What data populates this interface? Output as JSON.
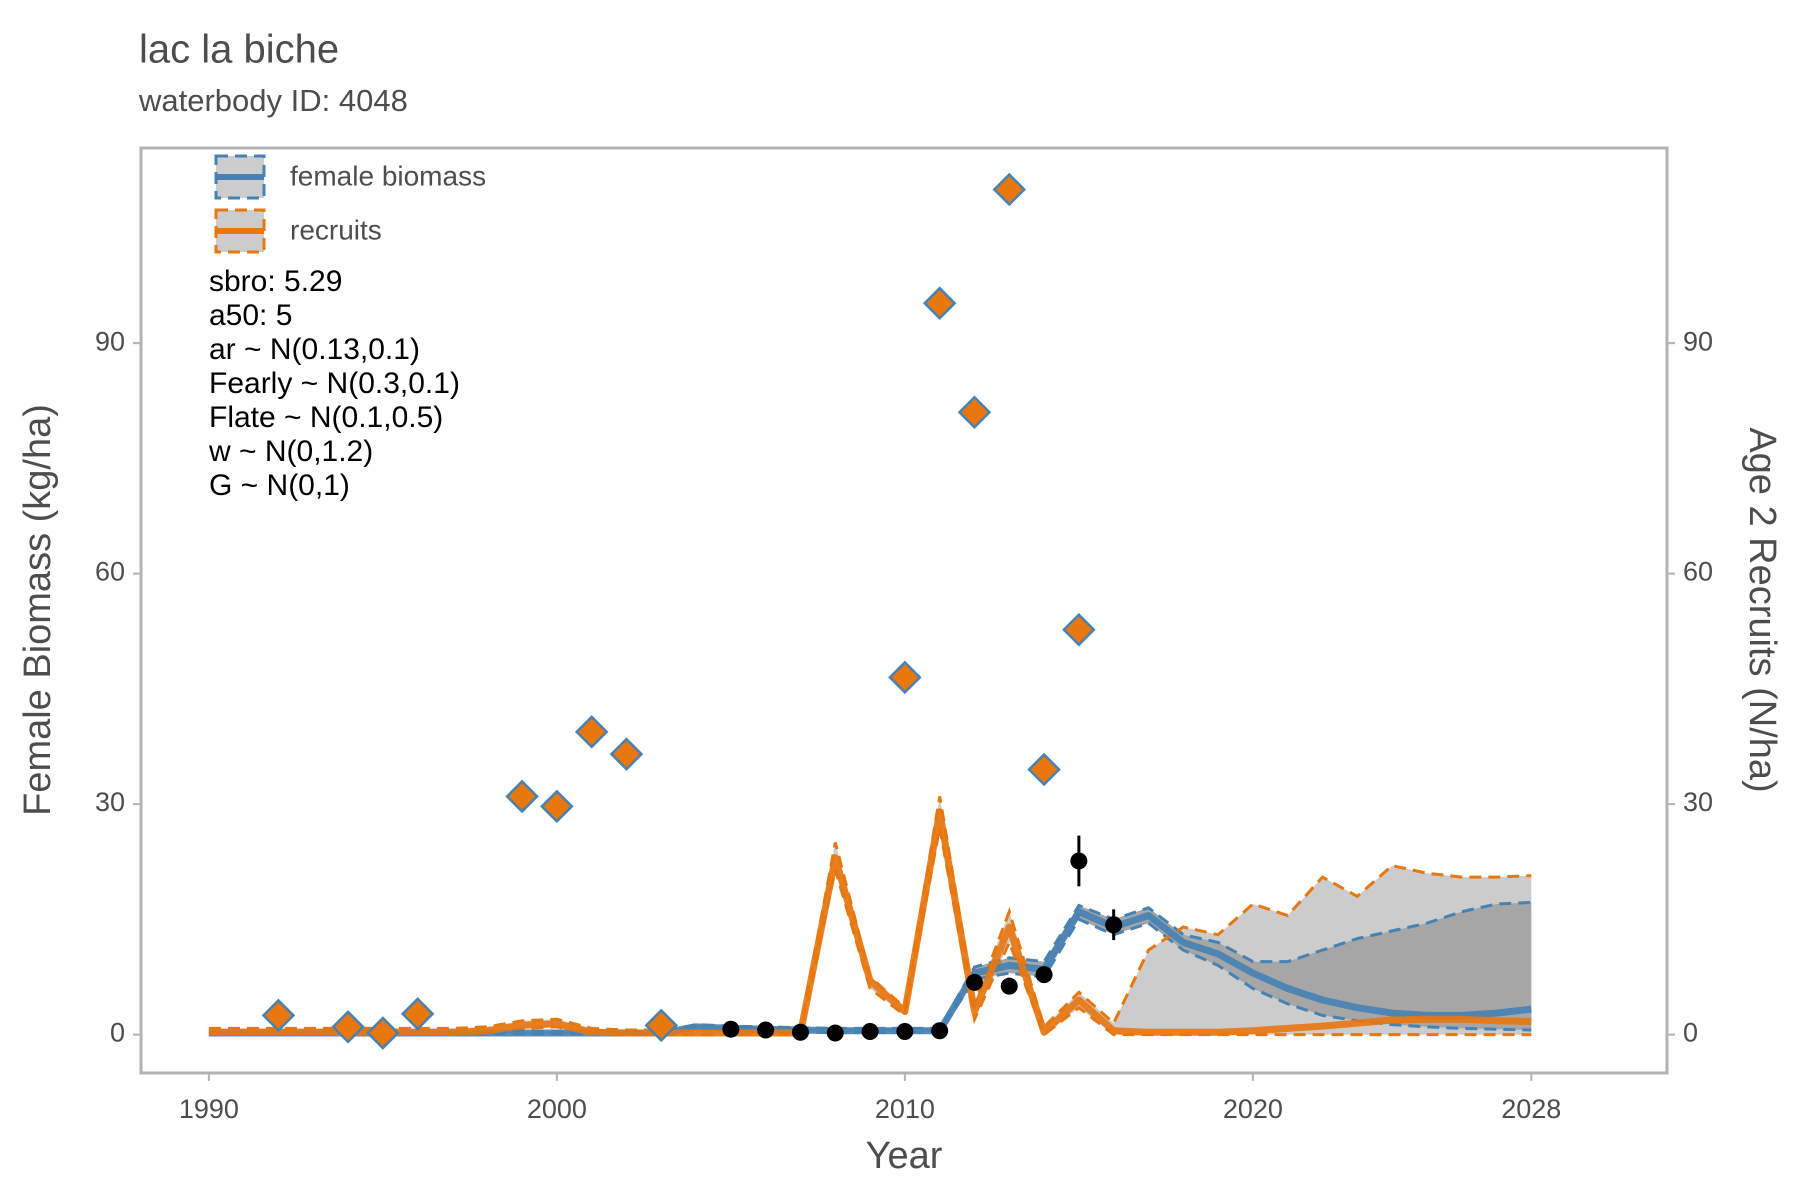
{
  "chart_data": {
    "type": "line",
    "title": "lac la biche",
    "subtitle": "waterbody ID: 4048",
    "xlabel": "Year",
    "ylabel": "Female Biomass (kg/ha)",
    "y2label": "Age 2 Recruits (N/ha)",
    "xlim": [
      1988.05,
      2031.9
    ],
    "ylim": [
      -5,
      115.4
    ],
    "y2lim": [
      -5,
      115.4
    ],
    "xticks": [
      1990,
      2000,
      2010,
      2020,
      2028
    ],
    "yticks": [
      0,
      30,
      60,
      90
    ],
    "y2ticks": [
      0,
      30,
      60,
      90
    ],
    "band_colors": [
      "#a6a6a6",
      "#cccccc"
    ],
    "x": [
      1990,
      1991,
      1992,
      1993,
      1994,
      1995,
      1996,
      1997,
      1998,
      1999,
      2000,
      2001,
      2002,
      2003,
      2004,
      2005,
      2006,
      2007,
      2008,
      2009,
      2010,
      2011,
      2012,
      2013,
      2014,
      2015,
      2016,
      2017,
      2018,
      2019,
      2020,
      2021,
      2022,
      2023,
      2024,
      2025,
      2026,
      2027,
      2028
    ],
    "series": [
      {
        "name": "female biomass",
        "color": "#4682b4",
        "values": [
          0.2,
          0.2,
          0.2,
          0.2,
          0.2,
          0.2,
          0.2,
          0.2,
          0.2,
          0.2,
          0.2,
          0.2,
          0.2,
          0.2,
          1,
          0.8,
          0.7,
          0.6,
          0.5,
          0.5,
          0.5,
          0.5,
          8,
          9,
          8.5,
          16,
          14,
          15.5,
          12,
          10.5,
          8,
          6,
          4.5,
          3.5,
          2.8,
          2.5,
          2.5,
          2.8,
          3.3
        ],
        "upper": [
          0.4,
          0.4,
          0.4,
          0.4,
          0.4,
          0.4,
          0.4,
          0.4,
          0.4,
          0.4,
          0.4,
          0.4,
          0.4,
          0.4,
          1.3,
          1.1,
          1,
          0.9,
          0.8,
          0.8,
          0.8,
          0.8,
          8.8,
          10,
          9.5,
          16.8,
          15,
          16.5,
          13,
          12,
          9.5,
          9.5,
          11,
          12.5,
          13.5,
          14.5,
          16,
          17,
          17.2
        ],
        "lower": [
          0.1,
          0.1,
          0.1,
          0.1,
          0.1,
          0.1,
          0.1,
          0.1,
          0.1,
          0.1,
          0.1,
          0.1,
          0.1,
          0.1,
          0.7,
          0.5,
          0.4,
          0.3,
          0.3,
          0.3,
          0.3,
          0.3,
          7.2,
          8,
          7.5,
          15,
          13,
          14.5,
          11,
          9,
          6,
          4,
          2.5,
          1.8,
          1.3,
          1,
          0.8,
          0.7,
          0.6
        ]
      },
      {
        "name": "recruits",
        "color": "#e8770e",
        "axis": "y2",
        "values": [
          0.3,
          0.3,
          0.3,
          0.3,
          0.3,
          0.3,
          0.3,
          0.3,
          0.5,
          1.2,
          1.4,
          0.3,
          0.2,
          0.2,
          0.2,
          0.2,
          0.2,
          0.2,
          23,
          7,
          3,
          29,
          3,
          14,
          0.3,
          4.5,
          0.5,
          0.3,
          0.3,
          0.3,
          0.5,
          0.8,
          1.1,
          1.5,
          1.9,
          2,
          2,
          1.8,
          1.7
        ],
        "upper": [
          0.8,
          0.8,
          0.8,
          0.8,
          0.8,
          0.8,
          0.8,
          0.8,
          1,
          1.8,
          2,
          0.8,
          0.6,
          0.6,
          0.6,
          0.6,
          0.6,
          0.6,
          25,
          7.5,
          3.5,
          31,
          4,
          16,
          1,
          5.5,
          1.5,
          11,
          14,
          13,
          17,
          15.5,
          20.5,
          18,
          22,
          21,
          20.5,
          20.5,
          20.7
        ],
        "lower": [
          0,
          0,
          0,
          0,
          0,
          0,
          0,
          0,
          0.1,
          0.8,
          1,
          0,
          0,
          0,
          0,
          0,
          0,
          0,
          21.5,
          6,
          2.5,
          27,
          2,
          12,
          0,
          3.5,
          0,
          0,
          0,
          0,
          0,
          0,
          0,
          0,
          0,
          0,
          0,
          0,
          0
        ]
      }
    ],
    "observed_recruits": {
      "axis": "y2",
      "color": "#e8770e",
      "edge_color": "#4682b4",
      "x": [
        1992,
        1994,
        1995,
        1996,
        1999,
        2000,
        2001,
        2002,
        2003,
        2010,
        2011,
        2012,
        2013,
        2014,
        2015
      ],
      "values": [
        2.5,
        1,
        0.2,
        2.7,
        31,
        29.7,
        39.4,
        36.5,
        1.2,
        46.5,
        95.2,
        81,
        110,
        34.5,
        52.7
      ]
    },
    "observed_biomass": {
      "color": "#000000",
      "x": [
        2005,
        2006,
        2007,
        2008,
        2009,
        2010,
        2011,
        2012,
        2013,
        2014,
        2015,
        2016
      ],
      "values": [
        0.7,
        0.6,
        0.3,
        0.2,
        0.4,
        0.4,
        0.5,
        6.8,
        6.3,
        7.8,
        22.6,
        14.3
      ],
      "errors": [
        0.2,
        0.2,
        0.2,
        0.2,
        0.2,
        0.2,
        0.2,
        0.2,
        0.2,
        0.2,
        3.3,
        2
      ]
    },
    "annotations": [
      "sbro: 5.29",
      "a50: 5",
      "ar ~ N(0.13,0.1)",
      "Fearly ~ N(0.3,0.1)",
      "Flate ~ N(0.1,0.5)",
      "w ~ N(0,1.2)",
      "G ~ N(0,1)"
    ]
  }
}
